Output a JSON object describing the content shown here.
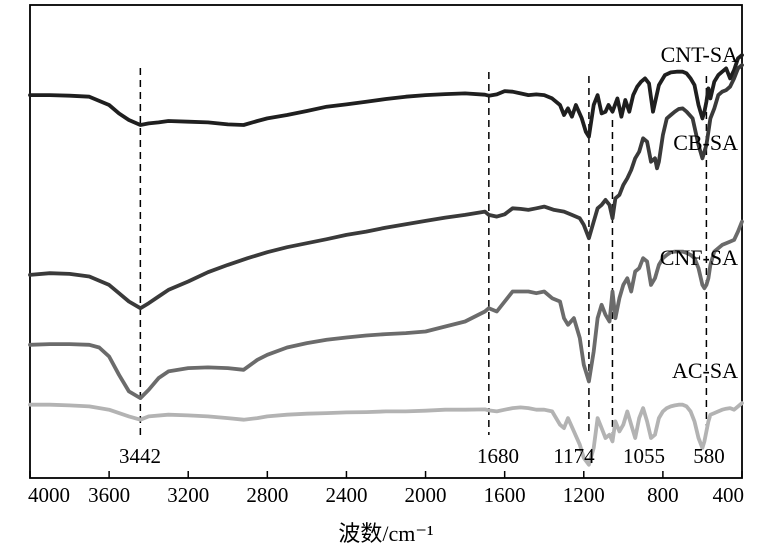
{
  "chart_data": {
    "type": "line",
    "title": "",
    "xlabel": "波数/cm⁻¹",
    "ylabel": "",
    "xlim": [
      4000,
      400
    ],
    "x_reversed": true,
    "xticks": [
      4000,
      3600,
      3200,
      2800,
      2400,
      2000,
      1600,
      1200,
      800,
      400
    ],
    "yticks_shown": false,
    "grid": false,
    "legend": "inline-right",
    "annotations": [
      {
        "x": 3442,
        "label": "3442"
      },
      {
        "x": 1680,
        "label": "1680"
      },
      {
        "x": 1174,
        "label": "1174"
      },
      {
        "x": 1055,
        "label": "1055"
      },
      {
        "x": 580,
        "label": "580"
      }
    ],
    "series": [
      {
        "name": "CNT-SA",
        "color": "#1f1f1f",
        "x": [
          4000,
          3900,
          3800,
          3700,
          3600,
          3550,
          3500,
          3442,
          3400,
          3350,
          3300,
          3200,
          3100,
          3000,
          2920,
          2850,
          2800,
          2700,
          2600,
          2500,
          2400,
          2300,
          2200,
          2100,
          2000,
          1900,
          1800,
          1700,
          1680,
          1640,
          1600,
          1560,
          1520,
          1480,
          1440,
          1400,
          1360,
          1320,
          1300,
          1280,
          1260,
          1240,
          1210,
          1190,
          1174,
          1150,
          1130,
          1110,
          1090,
          1075,
          1055,
          1030,
          1010,
          990,
          970,
          950,
          930,
          910,
          890,
          870,
          850,
          820,
          790,
          760,
          730,
          700,
          680,
          660,
          640,
          620,
          600,
          590,
          580,
          570,
          560,
          540,
          520,
          500,
          480,
          460,
          440,
          420,
          400
        ],
        "y": [
          1.15,
          1.15,
          1.148,
          1.145,
          1.12,
          1.095,
          1.075,
          1.06,
          1.065,
          1.068,
          1.072,
          1.07,
          1.068,
          1.062,
          1.06,
          1.072,
          1.08,
          1.09,
          1.102,
          1.115,
          1.122,
          1.13,
          1.138,
          1.145,
          1.15,
          1.153,
          1.155,
          1.151,
          1.148,
          1.152,
          1.162,
          1.16,
          1.155,
          1.15,
          1.152,
          1.15,
          1.14,
          1.12,
          1.09,
          1.11,
          1.085,
          1.12,
          1.08,
          1.04,
          1.025,
          1.12,
          1.15,
          1.095,
          1.1,
          1.12,
          1.1,
          1.14,
          1.085,
          1.135,
          1.1,
          1.15,
          1.175,
          1.19,
          1.2,
          1.185,
          1.1,
          1.18,
          1.21,
          1.218,
          1.22,
          1.22,
          1.215,
          1.2,
          1.18,
          1.12,
          1.08,
          1.1,
          1.13,
          1.17,
          1.14,
          1.19,
          1.21,
          1.22,
          1.23,
          1.2,
          1.225,
          1.26,
          1.27
        ]
      },
      {
        "name": "CB-SA",
        "color": "#3a3a3a",
        "x": [
          4000,
          3900,
          3800,
          3700,
          3600,
          3550,
          3500,
          3442,
          3400,
          3350,
          3300,
          3200,
          3100,
          3000,
          2900,
          2800,
          2700,
          2600,
          2500,
          2400,
          2300,
          2200,
          2100,
          2000,
          1900,
          1800,
          1700,
          1680,
          1640,
          1600,
          1560,
          1520,
          1480,
          1440,
          1400,
          1350,
          1300,
          1260,
          1220,
          1200,
          1174,
          1150,
          1130,
          1110,
          1090,
          1070,
          1055,
          1040,
          1020,
          1000,
          980,
          960,
          940,
          920,
          900,
          880,
          860,
          840,
          830,
          820,
          800,
          780,
          760,
          740,
          720,
          700,
          680,
          650,
          620,
          600,
          590,
          580,
          570,
          560,
          540,
          520,
          500,
          480,
          460,
          440,
          420,
          400
        ],
        "y": [
          0.61,
          0.615,
          0.613,
          0.605,
          0.58,
          0.555,
          0.53,
          0.51,
          0.525,
          0.545,
          0.565,
          0.59,
          0.618,
          0.64,
          0.66,
          0.678,
          0.693,
          0.705,
          0.717,
          0.73,
          0.74,
          0.752,
          0.762,
          0.772,
          0.782,
          0.79,
          0.8,
          0.79,
          0.785,
          0.792,
          0.81,
          0.808,
          0.805,
          0.81,
          0.815,
          0.805,
          0.8,
          0.79,
          0.78,
          0.76,
          0.72,
          0.77,
          0.81,
          0.82,
          0.835,
          0.82,
          0.78,
          0.84,
          0.85,
          0.88,
          0.9,
          0.925,
          0.96,
          0.98,
          1.02,
          1.01,
          0.95,
          0.96,
          0.93,
          0.95,
          1.03,
          1.08,
          1.09,
          1.1,
          1.108,
          1.11,
          1.1,
          1.08,
          1.0,
          0.96,
          0.98,
          1.0,
          1.04,
          1.08,
          1.11,
          1.15,
          1.16,
          1.165,
          1.175,
          1.2,
          1.23,
          1.24
        ]
      },
      {
        "name": "CNF-SA",
        "color": "#6b6b6b",
        "x": [
          4000,
          3900,
          3800,
          3700,
          3650,
          3600,
          3550,
          3500,
          3442,
          3400,
          3350,
          3300,
          3200,
          3100,
          3000,
          2920,
          2850,
          2800,
          2700,
          2600,
          2500,
          2400,
          2300,
          2200,
          2100,
          2000,
          1900,
          1800,
          1700,
          1680,
          1640,
          1600,
          1560,
          1520,
          1480,
          1440,
          1400,
          1360,
          1320,
          1300,
          1280,
          1250,
          1220,
          1200,
          1174,
          1150,
          1130,
          1110,
          1090,
          1070,
          1055,
          1040,
          1020,
          1000,
          980,
          960,
          940,
          920,
          900,
          880,
          860,
          840,
          820,
          800,
          780,
          760,
          740,
          720,
          700,
          680,
          660,
          640,
          620,
          600,
          590,
          580,
          570,
          560,
          540,
          520,
          500,
          480,
          460,
          440,
          420,
          400
        ],
        "y": [
          0.4,
          0.402,
          0.402,
          0.4,
          0.392,
          0.365,
          0.31,
          0.26,
          0.24,
          0.265,
          0.3,
          0.32,
          0.33,
          0.332,
          0.33,
          0.325,
          0.355,
          0.37,
          0.392,
          0.405,
          0.415,
          0.422,
          0.428,
          0.432,
          0.435,
          0.44,
          0.455,
          0.47,
          0.5,
          0.51,
          0.5,
          0.53,
          0.56,
          0.56,
          0.56,
          0.555,
          0.56,
          0.54,
          0.53,
          0.48,
          0.46,
          0.48,
          0.42,
          0.34,
          0.29,
          0.38,
          0.48,
          0.52,
          0.49,
          0.47,
          0.56,
          0.48,
          0.54,
          0.58,
          0.6,
          0.56,
          0.62,
          0.63,
          0.66,
          0.65,
          0.58,
          0.6,
          0.64,
          0.66,
          0.67,
          0.678,
          0.68,
          0.68,
          0.68,
          0.676,
          0.67,
          0.66,
          0.63,
          0.58,
          0.57,
          0.58,
          0.6,
          0.64,
          0.68,
          0.69,
          0.7,
          0.705,
          0.71,
          0.715,
          0.74,
          0.77
        ]
      },
      {
        "name": "AC-SA",
        "color": "#b3b3b3",
        "x": [
          4000,
          3900,
          3800,
          3700,
          3600,
          3500,
          3442,
          3400,
          3300,
          3200,
          3100,
          3000,
          2920,
          2850,
          2800,
          2700,
          2600,
          2500,
          2400,
          2300,
          2200,
          2100,
          2000,
          1900,
          1800,
          1700,
          1680,
          1640,
          1600,
          1560,
          1520,
          1480,
          1440,
          1400,
          1360,
          1320,
          1300,
          1280,
          1250,
          1220,
          1200,
          1174,
          1150,
          1130,
          1110,
          1090,
          1070,
          1055,
          1040,
          1020,
          1000,
          980,
          960,
          940,
          920,
          900,
          880,
          860,
          840,
          820,
          800,
          780,
          760,
          740,
          720,
          700,
          680,
          660,
          640,
          620,
          600,
          590,
          580,
          570,
          560,
          540,
          520,
          500,
          480,
          460,
          440,
          420,
          400
        ],
        "y": [
          0.22,
          0.22,
          0.218,
          0.215,
          0.205,
          0.185,
          0.175,
          0.185,
          0.19,
          0.188,
          0.185,
          0.18,
          0.175,
          0.18,
          0.185,
          0.19,
          0.193,
          0.195,
          0.197,
          0.198,
          0.2,
          0.2,
          0.202,
          0.205,
          0.205,
          0.206,
          0.203,
          0.2,
          0.205,
          0.21,
          0.212,
          0.21,
          0.205,
          0.205,
          0.2,
          0.16,
          0.15,
          0.18,
          0.14,
          0.1,
          0.06,
          0.04,
          0.09,
          0.18,
          0.15,
          0.12,
          0.13,
          0.11,
          0.17,
          0.14,
          0.16,
          0.2,
          0.16,
          0.12,
          0.18,
          0.21,
          0.17,
          0.12,
          0.13,
          0.18,
          0.2,
          0.21,
          0.215,
          0.218,
          0.22,
          0.22,
          0.215,
          0.2,
          0.17,
          0.12,
          0.09,
          0.11,
          0.14,
          0.17,
          0.19,
          0.195,
          0.2,
          0.205,
          0.208,
          0.21,
          0.205,
          0.215,
          0.225
        ]
      }
    ]
  }
}
